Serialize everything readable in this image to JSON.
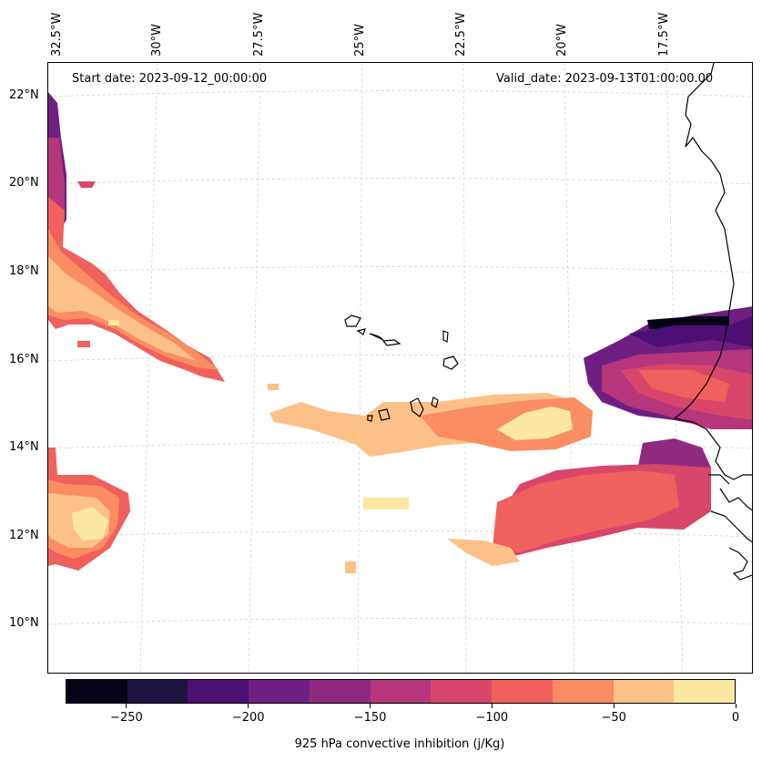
{
  "map": {
    "start_date": "Start date: 2023-09-12_00:00:00",
    "valid_date": "Valid_date: 2023-09-13T01:00:00.00",
    "lon_labels": [
      "32.5°W",
      "30°W",
      "27.5°W",
      "25°W",
      "22.5°W",
      "20°W",
      "17.5°W"
    ],
    "lat_labels": [
      "22°N",
      "20°N",
      "18°N",
      "16°N",
      "14°N",
      "12°N",
      "10°N"
    ],
    "gridlines": true,
    "region": "Cabo Verde and West African coast"
  },
  "colorbar": {
    "title": "925 hPa convective inhibition (j/Kg)",
    "tick_labels": [
      "−250",
      "−200",
      "−150",
      "−100",
      "−50",
      "0"
    ],
    "levels": [
      -275,
      -250,
      -225,
      -200,
      -175,
      -150,
      -125,
      -100,
      -75,
      -50,
      -25,
      0
    ],
    "colors": [
      "#050417",
      "#1f1442",
      "#4d0f74",
      "#6f1f81",
      "#902a81",
      "#b5367a",
      "#d8466b",
      "#f0605d",
      "#fb8d63",
      "#fec089",
      "#fde8a3"
    ]
  }
}
